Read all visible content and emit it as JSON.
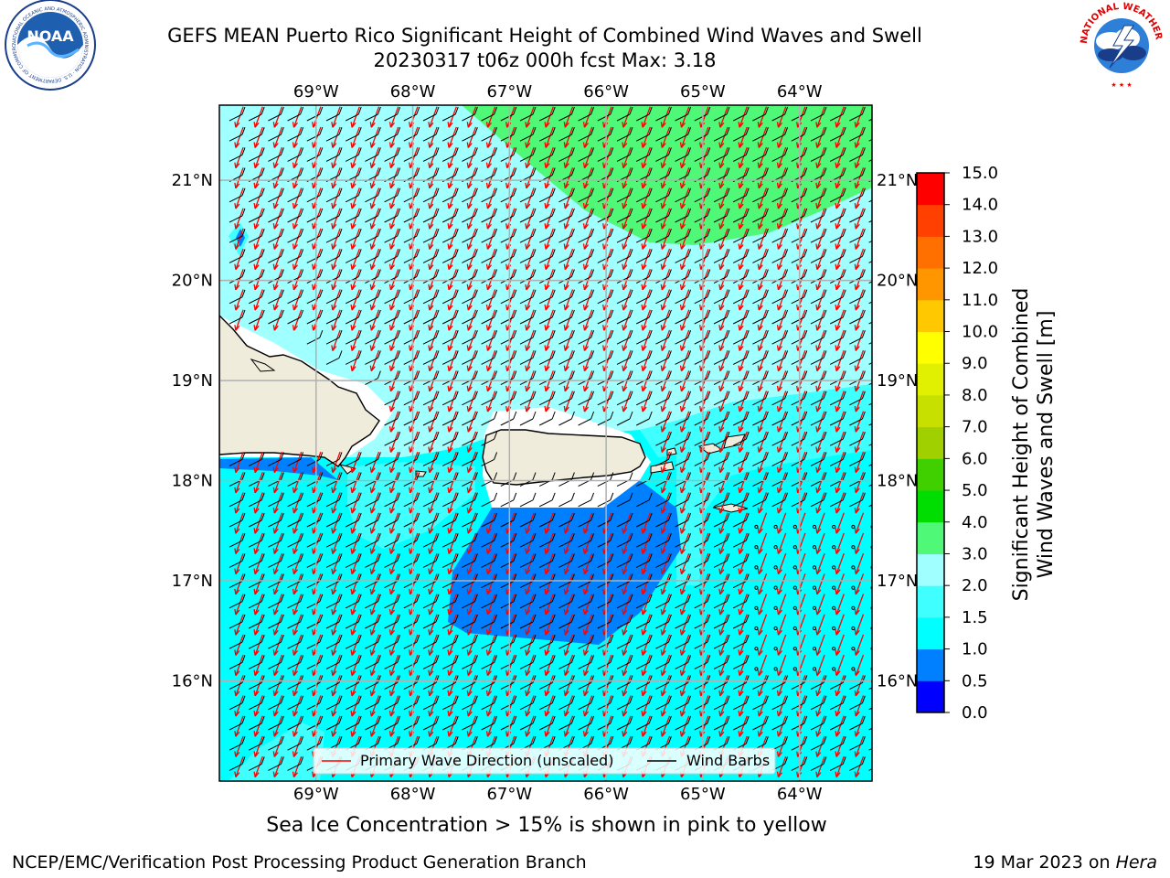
{
  "header": {
    "title_line1": "GEFS MEAN Puerto Rico Significant Height of Combined Wind Waves and Swell",
    "title_line2": "20230317 t06z 000h fcst   Max: 3.18"
  },
  "logos": {
    "left": {
      "icon": "noaa-logo-icon",
      "text": "NOAA",
      "ring_text": "NATIONAL OCEANIC AND ATMOSPHERIC ADMINISTRATION · U.S. DEPARTMENT OF COMMERCE"
    },
    "right": {
      "icon": "nws-logo-icon",
      "ring_text": "NATIONAL WEATHER SERVICE"
    }
  },
  "map": {
    "lon_ticks": [
      -69,
      -68,
      -67,
      -66,
      -65,
      -64
    ],
    "lon_labels": [
      "69°W",
      "68°W",
      "67°W",
      "66°W",
      "65°W",
      "64°W"
    ],
    "lat_ticks": [
      21,
      20,
      19,
      18,
      17,
      16
    ],
    "lat_labels": [
      "21°N",
      "20°N",
      "19°N",
      "18°N",
      "17°N",
      "16°N"
    ],
    "extent": {
      "lon_min": -70.0,
      "lon_max": -63.25,
      "lat_min": 15.0,
      "lat_max": 21.75
    },
    "land_color": "#efecdc",
    "grid": true,
    "legend": {
      "placement": "bottom-center",
      "items": [
        {
          "label": "Primary Wave Direction (unscaled)",
          "color": "#ff0000"
        },
        {
          "label": "Wind Barbs",
          "color": "#000000"
        }
      ]
    }
  },
  "colorbar": {
    "label_line1": "Significant Height of Combined",
    "label_line2": "Wind Waves and Swell [m]",
    "tick_labels": [
      "0.0",
      "0.5",
      "1.0",
      "1.5",
      "2.0",
      "3.0",
      "4.0",
      "5.0",
      "6.0",
      "7.0",
      "8.0",
      "9.0",
      "10.0",
      "11.0",
      "12.0",
      "13.0",
      "14.0",
      "15.0"
    ],
    "colors": [
      "#0000ff",
      "#0080ff",
      "#00ffff",
      "#40ffff",
      "#a0ffff",
      "#50f878",
      "#00dd00",
      "#40d000",
      "#a0d000",
      "#c8e000",
      "#e0f000",
      "#ffff00",
      "#ffc800",
      "#ff9600",
      "#ff7000",
      "#ff4000",
      "#ff0000"
    ]
  },
  "notes": {
    "ice": "Sea Ice Concentration > 15% is shown in pink to yellow"
  },
  "footer": {
    "left": "NCEP/EMC/Verification Post Processing Product Generation Branch",
    "right_prefix": "19 Mar 2023 on ",
    "right_host": "Hera"
  }
}
